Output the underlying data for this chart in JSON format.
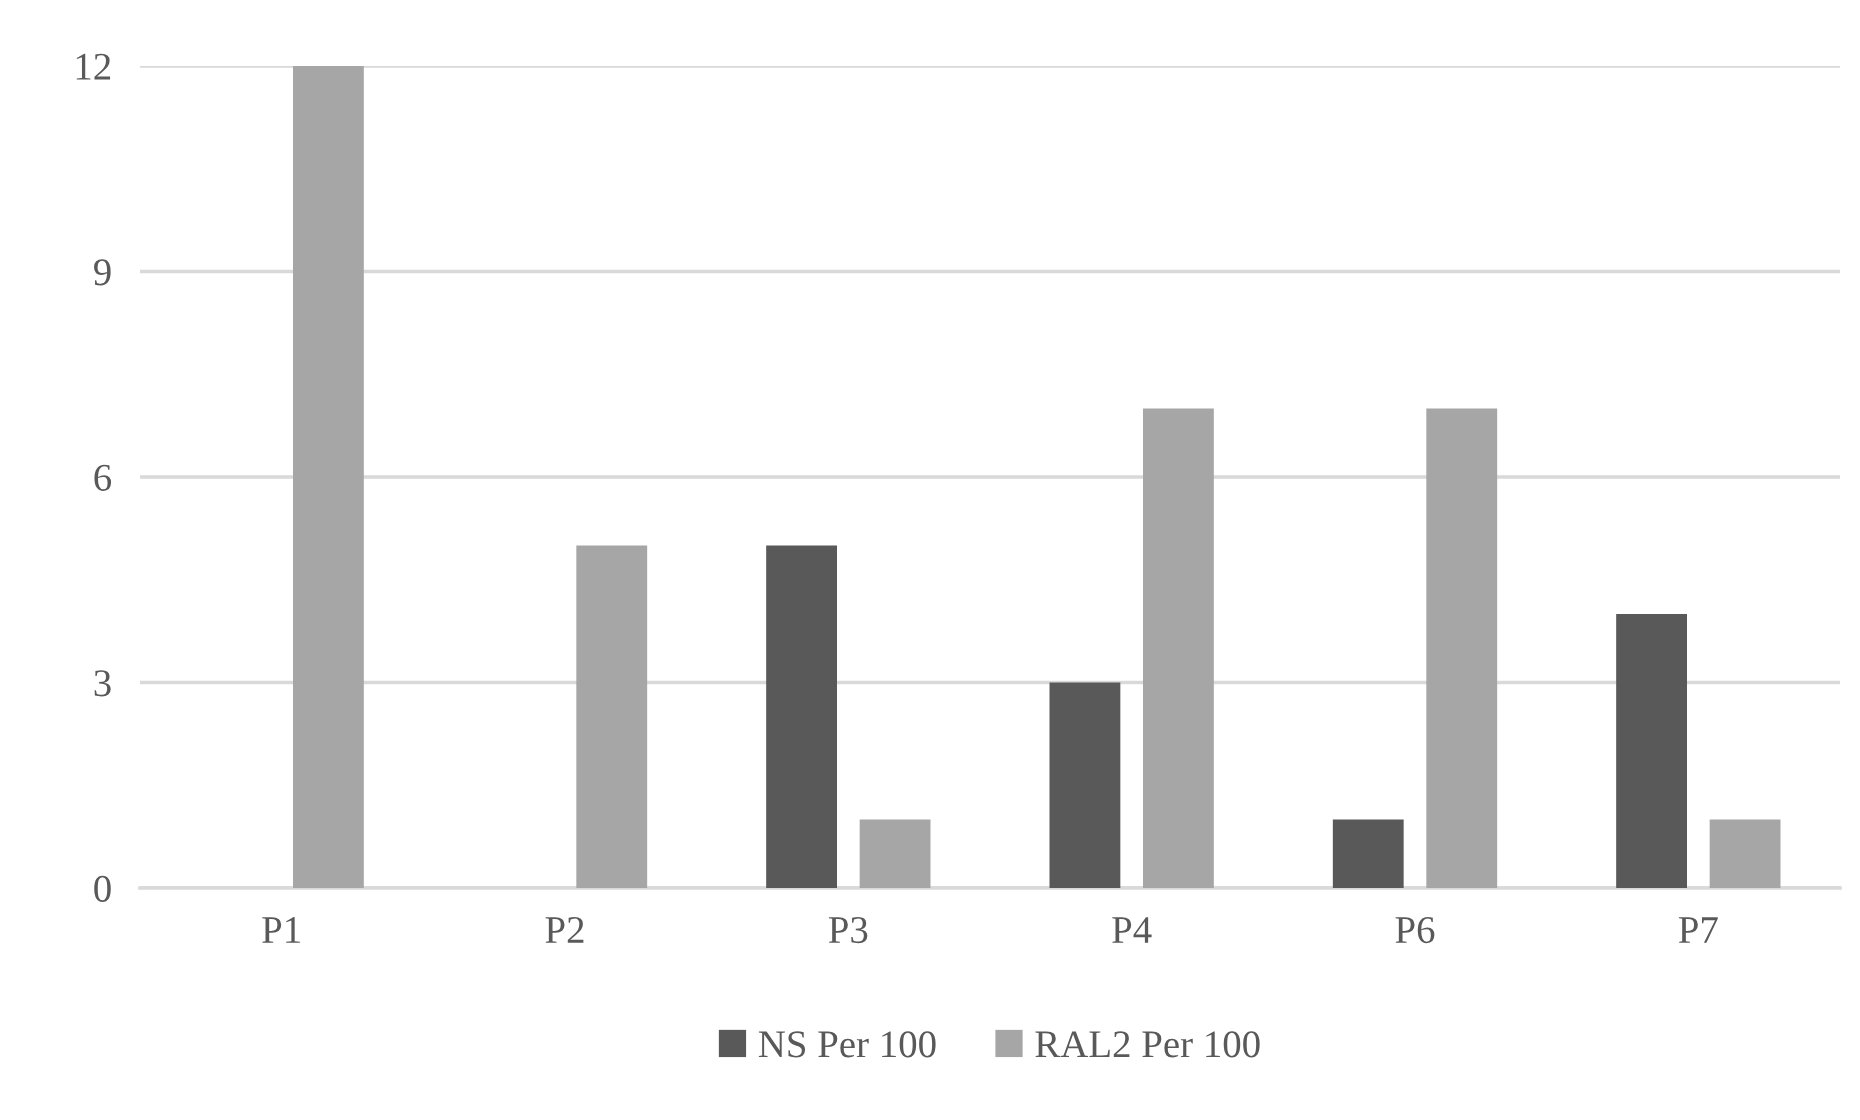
{
  "chart_data": {
    "type": "bar",
    "categories": [
      "P1",
      "P2",
      "P3",
      "P4",
      "P6",
      "P7"
    ],
    "series": [
      {
        "name": "NS Per 100",
        "color": "#595959",
        "values": [
          0,
          0,
          5,
          3,
          1,
          4
        ]
      },
      {
        "name": "RAL2 Per 100",
        "color": "#a6a6a6",
        "values": [
          12,
          5,
          1,
          7,
          7,
          1
        ]
      }
    ],
    "ylim": [
      0,
      12
    ],
    "yticks": [
      0,
      3,
      6,
      9,
      12
    ],
    "grid": "y",
    "legend": "bottom"
  }
}
